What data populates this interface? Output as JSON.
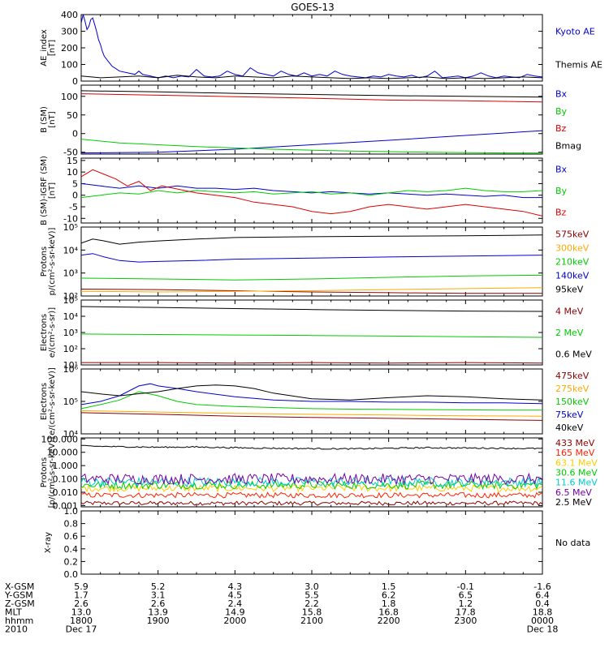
{
  "title": "GOES-13",
  "chart_data": [
    {
      "type": "line",
      "panel": "ae",
      "ylabel": [
        "AE_index",
        "[nT]"
      ],
      "ylim": [
        0,
        400
      ],
      "yticks": [
        0,
        100,
        200,
        300,
        400
      ],
      "series": [
        {
          "name": "Kyoto AE",
          "color": "#0000cc",
          "x": [
            0,
            0.5,
            1,
            1.5,
            2,
            2.5,
            3,
            3.5,
            4,
            4.5,
            5,
            5.5,
            6,
            7,
            8,
            10,
            12,
            14,
            15,
            16,
            18,
            20,
            22,
            24,
            26,
            28,
            30,
            32,
            34,
            36,
            38,
            40,
            42,
            44,
            46,
            48,
            50,
            52,
            54,
            56,
            58,
            60,
            62,
            64,
            66,
            68,
            70,
            72,
            74,
            76,
            78,
            80,
            82,
            84,
            86,
            88,
            90,
            92,
            94,
            96,
            98,
            100,
            102,
            104,
            106,
            108,
            110,
            112,
            114,
            116,
            118,
            120
          ],
          "y": [
            350,
            400,
            360,
            310,
            330,
            370,
            380,
            340,
            300,
            250,
            220,
            180,
            150,
            120,
            90,
            60,
            50,
            40,
            60,
            40,
            30,
            20,
            30,
            20,
            30,
            25,
            70,
            30,
            25,
            30,
            60,
            40,
            30,
            80,
            50,
            40,
            30,
            60,
            40,
            30,
            50,
            30,
            40,
            30,
            60,
            40,
            30,
            25,
            20,
            30,
            25,
            40,
            30,
            25,
            35,
            20,
            30,
            60,
            20,
            25,
            30,
            20,
            30,
            50,
            30,
            20,
            30,
            25,
            20,
            40,
            30,
            25
          ]
        },
        {
          "name": "Themis AE",
          "color": "#000000",
          "x": [
            0,
            5,
            10,
            15,
            20,
            25,
            30,
            35,
            40,
            45,
            50,
            55,
            60,
            65,
            70,
            75,
            80,
            85,
            90,
            95,
            100,
            105,
            110,
            115,
            120
          ],
          "y": [
            30,
            20,
            25,
            30,
            20,
            35,
            25,
            20,
            30,
            25,
            20,
            30,
            25,
            20,
            15,
            20,
            15,
            20,
            25,
            15,
            20,
            15,
            20,
            25,
            20
          ]
        }
      ]
    },
    {
      "type": "line",
      "panel": "b_sm",
      "ylabel": [
        "B (SM)",
        "[nT]"
      ],
      "ylim": [
        -55,
        130
      ],
      "yticks": [
        -50,
        0,
        50,
        100
      ],
      "series": [
        {
          "name": "Bx",
          "color": "#0000cc",
          "x": [
            0,
            20,
            40,
            60,
            80,
            100,
            120
          ],
          "y": [
            -52,
            -50,
            -42,
            -30,
            -18,
            -5,
            8
          ]
        },
        {
          "name": "By",
          "color": "#00cc00",
          "x": [
            0,
            10,
            30,
            50,
            70,
            90,
            110,
            120
          ],
          "y": [
            -15,
            -25,
            -35,
            -42,
            -47,
            -50,
            -52,
            -52
          ]
        },
        {
          "name": "Bz",
          "color": "#dd0000",
          "x": [
            0,
            20,
            40,
            60,
            80,
            100,
            120
          ],
          "y": [
            107,
            103,
            99,
            95,
            90,
            88,
            85
          ]
        },
        {
          "name": "Bmag",
          "color": "#000000",
          "x": [
            0,
            20,
            40,
            60,
            80,
            100,
            120
          ],
          "y": [
            115,
            112,
            108,
            105,
            102,
            100,
            98
          ]
        }
      ]
    },
    {
      "type": "line",
      "panel": "b_igrf",
      "ylabel": [
        "B (SM)-IGRF (SM)",
        "[nT]"
      ],
      "ylim": [
        -12,
        16
      ],
      "yticks": [
        -10,
        -5,
        0,
        5,
        10,
        15
      ],
      "series": [
        {
          "name": "Bx",
          "color": "#0000cc",
          "x": [
            0,
            5,
            10,
            15,
            20,
            25,
            30,
            35,
            40,
            45,
            50,
            55,
            60,
            65,
            70,
            75,
            80,
            85,
            90,
            95,
            100,
            105,
            110,
            115,
            120
          ],
          "y": [
            5,
            4,
            3,
            4,
            3,
            4,
            3,
            3,
            2.5,
            3,
            2,
            1.5,
            1,
            1.5,
            1,
            0.5,
            1,
            0.5,
            0,
            0.5,
            0,
            -0.5,
            0,
            -1,
            -1
          ]
        },
        {
          "name": "By",
          "color": "#00cc00",
          "x": [
            0,
            5,
            10,
            15,
            20,
            25,
            30,
            35,
            40,
            45,
            50,
            55,
            60,
            65,
            70,
            75,
            80,
            85,
            90,
            95,
            100,
            105,
            110,
            115,
            120
          ],
          "y": [
            -1,
            0,
            1,
            0.5,
            2,
            1,
            2,
            1.5,
            1,
            1.5,
            0.5,
            1,
            1.5,
            0.5,
            1,
            0,
            1,
            2,
            1.5,
            2,
            3,
            2,
            1.5,
            1.5,
            2
          ]
        },
        {
          "name": "Bz",
          "color": "#dd0000",
          "x": [
            0,
            3,
            6,
            9,
            12,
            15,
            18,
            21,
            24,
            27,
            30,
            35,
            40,
            45,
            50,
            55,
            60,
            65,
            70,
            75,
            80,
            85,
            90,
            95,
            100,
            105,
            110,
            115,
            120
          ],
          "y": [
            8,
            11,
            9,
            7,
            4,
            6,
            2,
            4,
            3,
            2,
            1,
            0,
            -1,
            -3,
            -4,
            -5,
            -7,
            -8,
            -7,
            -5,
            -4,
            -5,
            -6,
            -5,
            -4,
            -5,
            -6,
            -7,
            -9
          ]
        }
      ]
    },
    {
      "type": "line",
      "panel": "protons",
      "ylabel": [
        "Protons",
        "p/(cm²-s-sr-keV)]"
      ],
      "yscale": "log",
      "ylim": [
        100,
        100000
      ],
      "yticks": [
        "10²",
        "10³",
        "10⁴",
        "10⁵"
      ],
      "series": [
        {
          "name": "575keV",
          "color": "#8b0000",
          "x": [
            0,
            20,
            40,
            60,
            80,
            100,
            120
          ],
          "y": [
            200,
            190,
            170,
            150,
            140,
            130,
            130
          ]
        },
        {
          "name": "300keV",
          "color": "#ffaa00",
          "x": [
            0,
            20,
            40,
            60,
            80,
            100,
            120
          ],
          "y": [
            160,
            150,
            160,
            170,
            190,
            210,
            230
          ]
        },
        {
          "name": "210keV",
          "color": "#00cc00",
          "x": [
            0,
            20,
            40,
            60,
            80,
            100,
            120
          ],
          "y": [
            600,
            550,
            500,
            550,
            650,
            750,
            800
          ]
        },
        {
          "name": "140keV",
          "color": "#0000cc",
          "x": [
            0,
            3,
            6,
            10,
            15,
            20,
            30,
            40,
            60,
            80,
            100,
            120
          ],
          "y": [
            6000,
            7000,
            5000,
            3500,
            3000,
            3200,
            3500,
            4000,
            4500,
            5000,
            5500,
            6000
          ]
        },
        {
          "name": "95keV",
          "color": "#000000",
          "x": [
            0,
            3,
            6,
            10,
            15,
            20,
            30,
            40,
            60,
            80,
            100,
            120
          ],
          "y": [
            20000,
            30000,
            25000,
            18000,
            22000,
            25000,
            30000,
            35000,
            38000,
            40000,
            42000,
            45000
          ]
        }
      ]
    },
    {
      "type": "line",
      "panel": "electrons1",
      "ylabel": [
        "Electrons",
        "e/(cm²-s-sr)]"
      ],
      "yscale": "log",
      "ylim": [
        10,
        100000
      ],
      "yticks": [
        "10¹",
        "10²",
        "10³",
        "10⁴",
        "10⁵"
      ],
      "series": [
        {
          "name": "4 MeV",
          "color": "#8b0000",
          "x": [
            0,
            20,
            40,
            60,
            80,
            100,
            120
          ],
          "y": [
            14,
            14,
            13,
            14,
            13,
            14,
            13
          ]
        },
        {
          "name": "2 MeV",
          "color": "#00cc00",
          "x": [
            0,
            20,
            40,
            60,
            80,
            100,
            120
          ],
          "y": [
            800,
            750,
            700,
            650,
            600,
            550,
            500
          ]
        },
        {
          "name": "0.6 MeV",
          "color": "#000000",
          "x": [
            0,
            20,
            40,
            60,
            80,
            100,
            120
          ],
          "y": [
            40000,
            35000,
            30000,
            26000,
            23000,
            21000,
            20000
          ]
        }
      ]
    },
    {
      "type": "line",
      "panel": "electrons2",
      "ylabel": [
        "Electrons",
        "e/(cm²-s-sr-keV)]"
      ],
      "yscale": "log",
      "ylim": [
        10000,
        1000000
      ],
      "yticks": [
        "10⁴",
        "10⁵",
        "10⁶"
      ],
      "series": [
        {
          "name": "475keV",
          "color": "#8b0000",
          "x": [
            0,
            20,
            40,
            60,
            80,
            100,
            120
          ],
          "y": [
            45000,
            40000,
            35000,
            32000,
            30000,
            28000,
            26000
          ]
        },
        {
          "name": "275keV",
          "color": "#ffaa00",
          "x": [
            0,
            20,
            40,
            60,
            80,
            100,
            120
          ],
          "y": [
            52000,
            47000,
            43000,
            40000,
            38000,
            36000,
            35000
          ]
        },
        {
          "name": "150keV",
          "color": "#00cc00",
          "x": [
            0,
            5,
            10,
            15,
            20,
            25,
            30,
            40,
            50,
            60,
            70,
            80,
            90,
            100,
            110,
            120
          ],
          "y": [
            60000,
            80000,
            110000,
            200000,
            150000,
            100000,
            80000,
            70000,
            65000,
            60000,
            58000,
            57000,
            56000,
            55000,
            54000,
            54000
          ]
        },
        {
          "name": "75keV",
          "color": "#0000cc",
          "x": [
            0,
            5,
            10,
            15,
            18,
            20,
            25,
            30,
            40,
            50,
            60,
            70,
            80,
            90,
            100,
            110,
            120
          ],
          "y": [
            80000,
            100000,
            150000,
            300000,
            350000,
            300000,
            250000,
            200000,
            140000,
            110000,
            100000,
            100000,
            95000,
            95000,
            90000,
            90000,
            85000
          ]
        },
        {
          "name": "40keV",
          "color": "#000000",
          "x": [
            0,
            5,
            10,
            20,
            25,
            30,
            35,
            40,
            45,
            50,
            60,
            70,
            80,
            90,
            100,
            110,
            120
          ],
          "y": [
            200000,
            170000,
            150000,
            200000,
            250000,
            300000,
            320000,
            300000,
            250000,
            180000,
            120000,
            110000,
            130000,
            150000,
            140000,
            120000,
            110000
          ]
        }
      ]
    },
    {
      "type": "line",
      "panel": "protons_hi",
      "ylabel": [
        "Protons",
        "[p/(cm²-s-sr-keV)]"
      ],
      "yscale": "log",
      "ylim": [
        0.0008,
        120
      ],
      "yticks": [
        "0.001",
        "0.010",
        "0.100",
        "1.000",
        "10.000",
        "100.000"
      ],
      "series": [
        {
          "name": "433 MeV",
          "color": "#8b0000",
          "noise": 0.15,
          "x": [
            0,
            120
          ],
          "y": [
            0.0015,
            0.0015
          ]
        },
        {
          "name": "165 MeV",
          "color": "#ff2200",
          "noise": 0.2,
          "x": [
            0,
            120
          ],
          "y": [
            0.006,
            0.006
          ]
        },
        {
          "name": "63.1 MeV",
          "color": "#ffcc00",
          "noise": 0.25,
          "x": [
            0,
            120
          ],
          "y": [
            0.02,
            0.02
          ]
        },
        {
          "name": "30.6 MeV",
          "color": "#00cc00",
          "noise": 0.3,
          "x": [
            0,
            120
          ],
          "y": [
            0.035,
            0.035
          ]
        },
        {
          "name": "11.6 MeV",
          "color": "#00cccc",
          "noise": 0.35,
          "x": [
            0,
            120
          ],
          "y": [
            0.06,
            0.06
          ]
        },
        {
          "name": "6.5 MeV",
          "color": "#7700aa",
          "noise": 0.4,
          "x": [
            0,
            120
          ],
          "y": [
            0.1,
            0.1
          ]
        },
        {
          "name": "2.5 MeV",
          "color": "#000000",
          "noise": 0.05,
          "x": [
            0,
            10,
            20,
            30,
            40,
            50,
            60,
            70,
            80,
            90,
            100,
            110,
            120
          ],
          "y": [
            30,
            26,
            24,
            25,
            22,
            20,
            19,
            18,
            20,
            22,
            21,
            20,
            19
          ]
        }
      ]
    },
    {
      "type": "line",
      "panel": "xray",
      "ylabel": [
        "X-ray"
      ],
      "ylim": [
        0,
        1
      ],
      "yticks": [
        "0.0",
        "0.2",
        "0.4",
        "0.6",
        "0.8",
        "1.0"
      ],
      "no_data": "No data",
      "series": []
    }
  ],
  "xaxis": {
    "range_minutes": [
      0,
      120
    ],
    "rows": [
      {
        "label": "X-GSM",
        "values": [
          "5.9",
          "5.2",
          "4.3",
          "3.0",
          "1.5",
          "-0.1",
          "-1.6"
        ]
      },
      {
        "label": "Y-GSM",
        "values": [
          "1.7",
          "3.1",
          "4.5",
          "5.5",
          "6.2",
          "6.5",
          "6.4"
        ]
      },
      {
        "label": "Z-GSM",
        "values": [
          "2.6",
          "2.6",
          "2.4",
          "2.2",
          "1.8",
          "1.2",
          "0.4"
        ]
      },
      {
        "label": "MLT",
        "values": [
          "13.0",
          "13.9",
          "14.9",
          "15.8",
          "16.8",
          "17.8",
          "18.8"
        ]
      },
      {
        "label": "hhmm",
        "values": [
          "1800",
          "1900",
          "2000",
          "2100",
          "2200",
          "2300",
          "0000"
        ]
      },
      {
        "label": "2010",
        "values": [
          "Dec 17",
          "",
          "",
          "",
          "",
          "",
          "Dec 18"
        ]
      }
    ]
  }
}
